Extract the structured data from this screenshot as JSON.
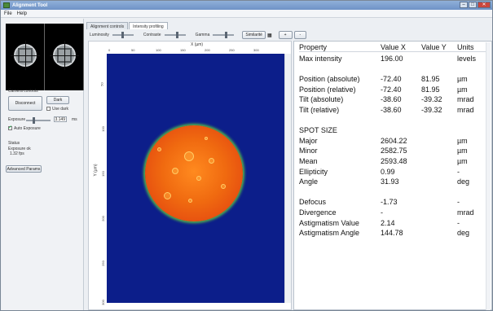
{
  "window": {
    "title": "Alignment Tool",
    "controls": [
      "–",
      "□",
      "✕"
    ]
  },
  "menu": [
    "File",
    "Help"
  ],
  "left_panel": {
    "camera_controls_label": "Camera controls",
    "disconnect_label": "Disconnect",
    "dark_label": "Dark",
    "use_dark_label": "Use dark",
    "exposure_label": "Exposure",
    "exposure_value": "3.149",
    "exposure_unit": "ms",
    "auto_exposure_label": "Auto Exposure",
    "status_label": "Status",
    "status_line1": "Exposure ok",
    "status_line2": "1.32 fps",
    "advanced_params_label": "Advanced Params"
  },
  "tabs": [
    "Alignment controls",
    "Intensity profiling"
  ],
  "controls": {
    "luminosity_label": "Luminosity",
    "contrast_label": "Contraste",
    "gamma_label": "Gamma",
    "similarity_label": "Similarité",
    "plus_label": "+",
    "minus_label": "-"
  },
  "image": {
    "x_axis_title": "X (µm)",
    "y_axis_title": "Y (µm)",
    "x_ticks": [
      "0",
      "50",
      "100",
      "150",
      "200",
      "250",
      "300"
    ],
    "y_ticks": [
      "50",
      "100",
      "150",
      "200",
      "250",
      "300"
    ],
    "colors": {
      "background": "#0c1e8a",
      "spot": "#f06a10",
      "rim": "#55b84a"
    }
  },
  "table": {
    "headers": [
      "Property",
      "Value X",
      "Value Y",
      "Units"
    ],
    "rows": [
      [
        "Max intensity",
        "196.00",
        "",
        "levels"
      ],
      [
        "",
        "",
        "",
        ""
      ],
      [
        "Position (absolute)",
        "-72.40",
        "81.95",
        "µm"
      ],
      [
        "Position (relative)",
        "-72.40",
        "81.95",
        "µm"
      ],
      [
        "Tilt (absolute)",
        "-38.60",
        "-39.32",
        "mrad"
      ],
      [
        "Tilt (relative)",
        "-38.60",
        "-39.32",
        "mrad"
      ],
      [
        "",
        "",
        "",
        ""
      ],
      [
        "SPOT SIZE",
        "",
        "",
        ""
      ],
      [
        "Major",
        "2604.22",
        "",
        "µm"
      ],
      [
        "Minor",
        "2582.75",
        "",
        "µm"
      ],
      [
        "Mean",
        "2593.48",
        "",
        "µm"
      ],
      [
        "Ellipticity",
        "0.99",
        "",
        "-"
      ],
      [
        "Angle",
        "31.93",
        "",
        "deg"
      ],
      [
        "",
        "",
        "",
        ""
      ],
      [
        "Defocus",
        "-1.73",
        "",
        "-"
      ],
      [
        "Divergence",
        "-",
        "",
        "mrad"
      ],
      [
        "Astigmatism Value",
        "2.14",
        "",
        "-"
      ],
      [
        "Astigmatism Angle",
        "144.78",
        "",
        "deg"
      ]
    ]
  }
}
